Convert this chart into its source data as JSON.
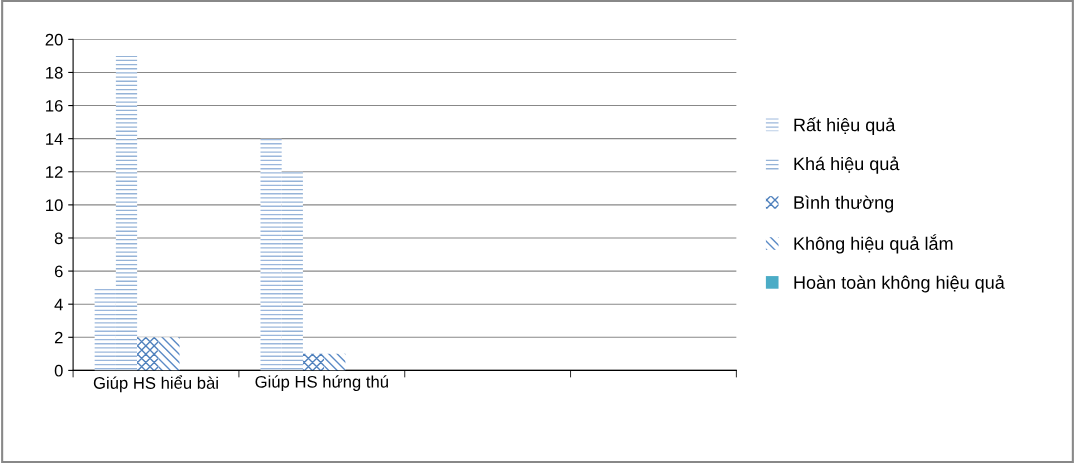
{
  "chart_data": {
    "type": "bar",
    "categories": [
      "Giúp HS hiểu bài",
      "Giúp HS hứng thú",
      null,
      null
    ],
    "series": [
      {
        "name": "Rất hiệu quả",
        "color": "#9bb7dc",
        "values": [
          5,
          14,
          null,
          null
        ]
      },
      {
        "name": "Khá hiệu quả",
        "color": "#95b3d7",
        "values": [
          19,
          12,
          null,
          null
        ]
      },
      {
        "name": "Bình thường",
        "color": "#4f81bd",
        "values": [
          2,
          1,
          null,
          null
        ]
      },
      {
        "name": "Không hiệu quả lắm",
        "color": "#5a8ac6",
        "values": [
          2,
          1,
          null,
          null
        ]
      },
      {
        "name": "Hoàn toàn không hiệu quả",
        "color": "#4bacc6",
        "values": [
          0,
          0,
          null,
          null
        ]
      }
    ],
    "ylim": [
      0,
      20
    ],
    "yticks": [
      0,
      2,
      4,
      6,
      8,
      10,
      12,
      14,
      16,
      18,
      20
    ],
    "grid": "y",
    "legend": "right"
  }
}
